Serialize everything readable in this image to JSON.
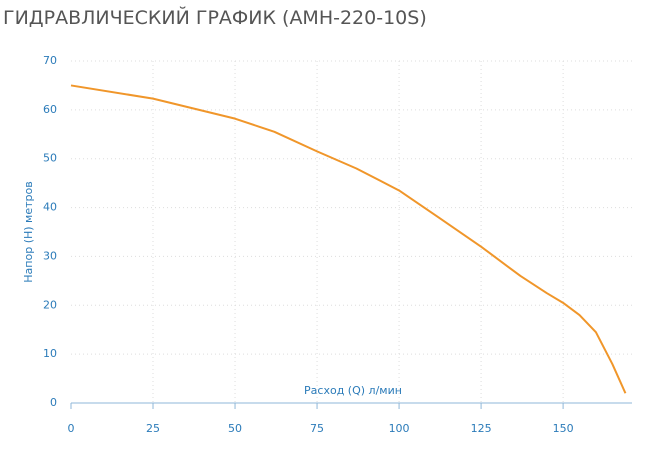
{
  "chart_data": {
    "type": "line",
    "title": "ГИДРАВЛИЧЕСКИЙ ГРАФИК (АМН-220-10S)",
    "x_label": "Расход (Q) л/мин",
    "y_label": "Напор (H) метров",
    "x": [
      0,
      25,
      50,
      62,
      75,
      87,
      100,
      112,
      125,
      137,
      145,
      150,
      155,
      160,
      165,
      169
    ],
    "series": [
      {
        "name": "АМН-220-10S",
        "color": "#f0962a",
        "values": [
          65,
          62.3,
          58.2,
          55.5,
          51.5,
          48,
          43.5,
          38,
          32,
          26,
          22.5,
          20.5,
          18,
          14.5,
          8,
          2
        ]
      }
    ],
    "xlim": [
      0,
      171
    ],
    "xticks": [
      0,
      25,
      50,
      75,
      100,
      125,
      150
    ],
    "ylim": [
      0,
      70
    ],
    "yticks": [
      0,
      10,
      20,
      30,
      40,
      50,
      60,
      70
    ],
    "grid": true
  }
}
